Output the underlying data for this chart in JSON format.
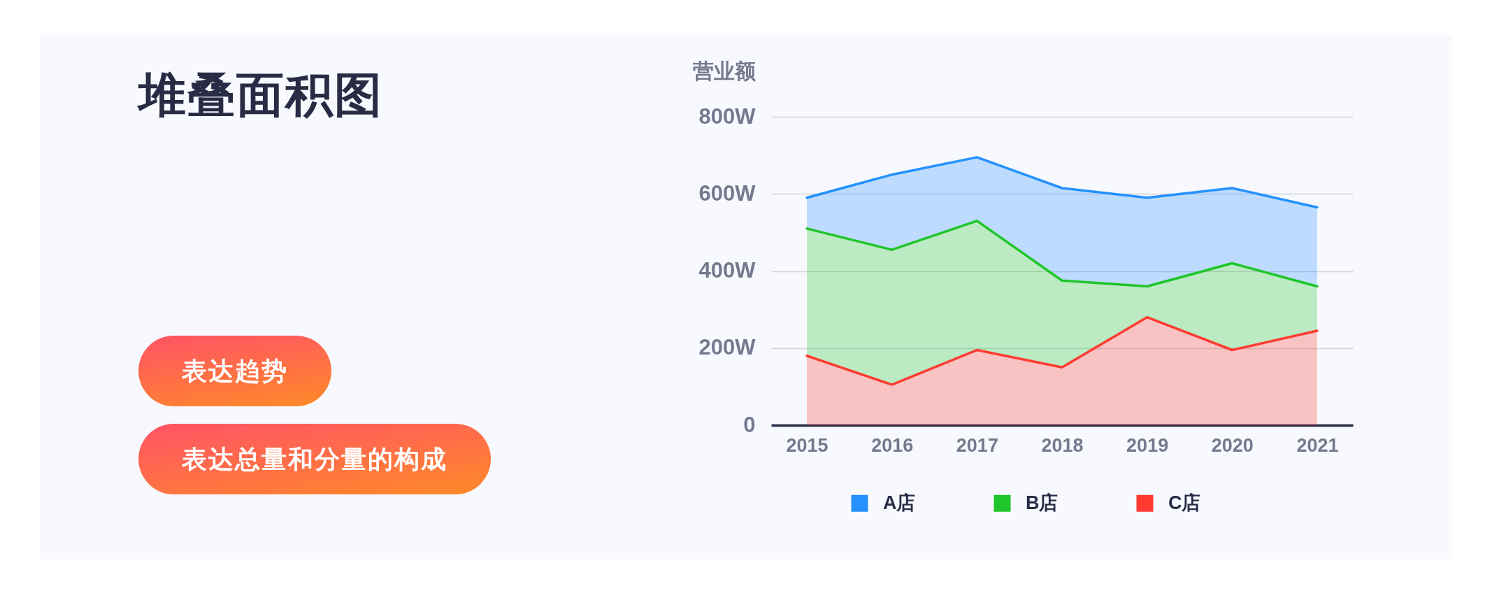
{
  "chart_data": {
    "type": "area",
    "title": "堆叠面积图",
    "annotations": [
      "表达趋势",
      "表达总量和分量的构成"
    ],
    "ylabel": "营业额",
    "categories": [
      "2015",
      "2016",
      "2017",
      "2018",
      "2019",
      "2020",
      "2021"
    ],
    "stacked": true,
    "series": [
      {
        "name": "C店",
        "color": "#ff3b30",
        "values": [
          180,
          105,
          195,
          150,
          280,
          195,
          245
        ]
      },
      {
        "name": "B店",
        "color": "#1fc52a",
        "values": [
          330,
          350,
          335,
          225,
          80,
          225,
          115
        ]
      },
      {
        "name": "A店",
        "color": "#2491ff",
        "values": [
          80,
          195,
          165,
          240,
          230,
          195,
          205
        ]
      }
    ],
    "ylim": [
      0,
      800
    ],
    "yticks": [
      0,
      {
        "value": 200,
        "label": "200W"
      },
      {
        "value": 400,
        "label": "400W"
      },
      {
        "value": 600,
        "label": "600W"
      },
      {
        "value": 800,
        "label": "800W"
      }
    ],
    "grid": "y",
    "legend": "bottom"
  }
}
